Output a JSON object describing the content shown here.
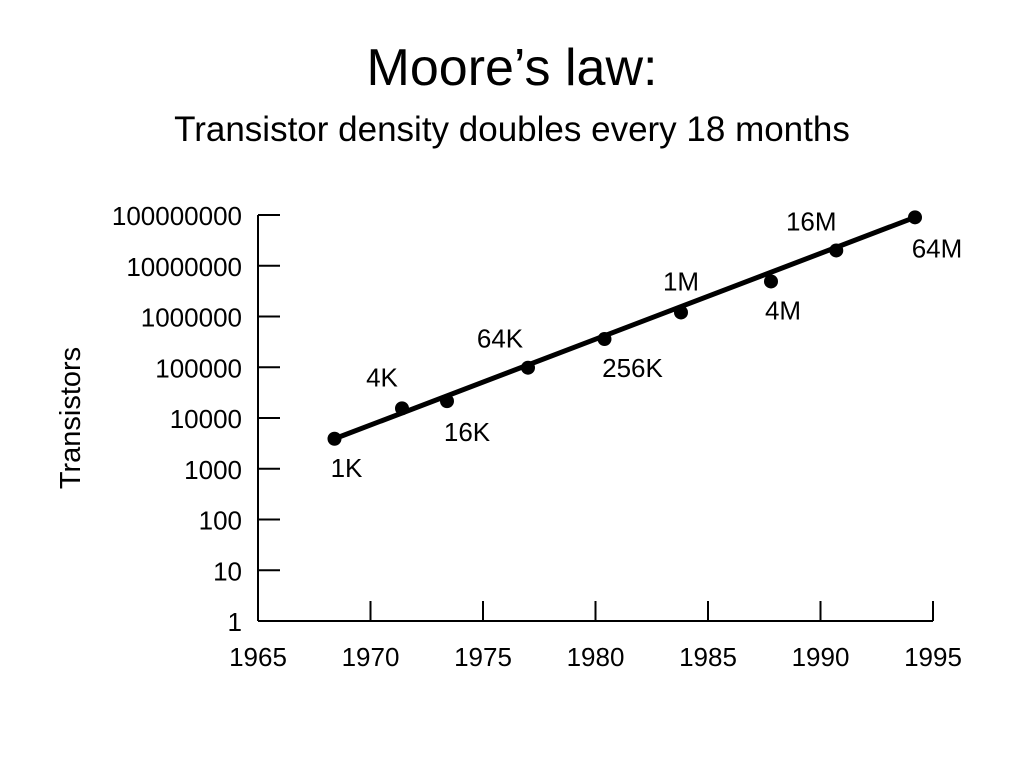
{
  "title": "Moore’s law:",
  "subtitle": "Transistor density doubles every 18 months",
  "chart_data": {
    "type": "scatter",
    "title": "Moore’s law:",
    "subtitle": "Transistor density doubles every 18 months",
    "xlabel": "",
    "ylabel": "Transistors",
    "xlim": [
      1965,
      1995
    ],
    "ylim": [
      1,
      100000000
    ],
    "yscale": "log",
    "x_ticks": [
      1965,
      1970,
      1975,
      1980,
      1985,
      1990,
      1995
    ],
    "x_tick_labels": [
      "1965",
      "1970",
      "1975",
      "1980",
      "1985",
      "1990",
      "1995"
    ],
    "y_ticks": [
      1,
      10,
      100,
      1000,
      10000,
      100000,
      1000000,
      10000000,
      100000000
    ],
    "y_tick_labels": [
      "1",
      "10",
      "100",
      "1000",
      "10000",
      "100000",
      "1000000",
      "10000000",
      "100000000"
    ],
    "grid": false,
    "points": [
      {
        "x": 1968.4,
        "y": 3900,
        "label": "1K"
      },
      {
        "x": 1971.4,
        "y": 15500,
        "label": "4K"
      },
      {
        "x": 1973.4,
        "y": 21500,
        "label": "16K"
      },
      {
        "x": 1977.0,
        "y": 98000,
        "label": "64K"
      },
      {
        "x": 1980.4,
        "y": 360000,
        "label": "256K"
      },
      {
        "x": 1983.8,
        "y": 1200000,
        "label": "1M"
      },
      {
        "x": 1987.8,
        "y": 4900000,
        "label": "4M"
      },
      {
        "x": 1990.7,
        "y": 20000000,
        "label": "16M"
      },
      {
        "x": 1994.2,
        "y": 90000000,
        "label": "64M"
      }
    ],
    "trend_line": {
      "x": [
        1968.4,
        1994.2
      ],
      "y": [
        3900,
        90000000
      ]
    }
  }
}
